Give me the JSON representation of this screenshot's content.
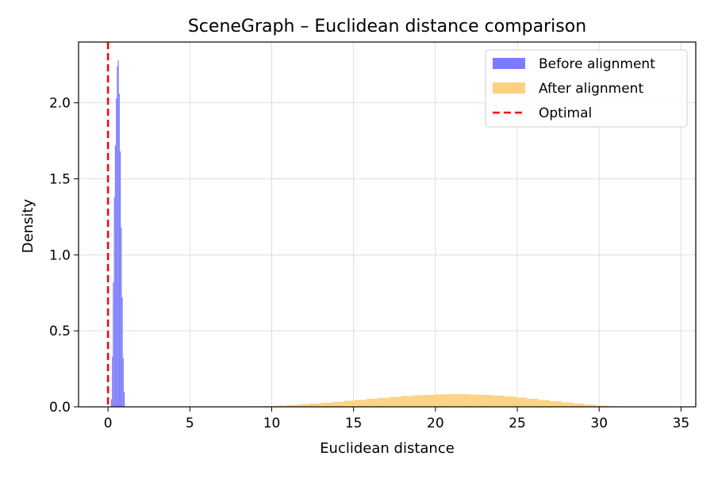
{
  "chart_data": {
    "type": "histogram",
    "title": "SceneGraph – Euclidean distance comparison",
    "xlabel": "Euclidean distance",
    "ylabel": "Density",
    "xlim": [
      -1.8,
      35.9
    ],
    "ylim": [
      0,
      2.4
    ],
    "xticks": [
      0,
      5,
      10,
      15,
      20,
      25,
      30,
      35
    ],
    "yticks": [
      0.0,
      0.5,
      1.0,
      1.5,
      2.0
    ],
    "xtick_labels": [
      "0",
      "5",
      "10",
      "15",
      "20",
      "25",
      "30",
      "35"
    ],
    "ytick_labels": [
      "0.0",
      "0.5",
      "1.0",
      "1.5",
      "2.0"
    ],
    "grid": true,
    "legend_position": "upper right",
    "series": [
      {
        "name": "Before alignment",
        "color": "#7b7bff",
        "bin_edges": [
          0.18,
          0.24,
          0.3,
          0.36,
          0.42,
          0.48,
          0.54,
          0.6,
          0.66,
          0.72,
          0.78,
          0.84,
          0.9,
          0.96,
          1.02
        ],
        "density": [
          0.05,
          0.33,
          0.82,
          1.38,
          1.72,
          2.03,
          2.24,
          2.28,
          2.06,
          1.68,
          1.18,
          0.72,
          0.32,
          0.1
        ]
      },
      {
        "name": "After alignment",
        "color": "#fdd17f",
        "bin_edges": [
          8.8,
          9.5,
          10.2,
          10.9,
          11.6,
          12.3,
          13.0,
          13.7,
          14.4,
          15.1,
          15.8,
          16.5,
          17.2,
          17.9,
          18.6,
          19.3,
          20.0,
          20.7,
          21.4,
          22.1,
          22.8,
          23.5,
          24.2,
          24.9,
          25.6,
          26.3,
          27.0,
          27.7,
          28.4,
          29.1,
          29.8,
          30.5,
          31.2,
          31.9
        ],
        "density": [
          0.003,
          0.005,
          0.008,
          0.012,
          0.016,
          0.021,
          0.027,
          0.033,
          0.04,
          0.046,
          0.053,
          0.059,
          0.065,
          0.071,
          0.076,
          0.079,
          0.082,
          0.083,
          0.083,
          0.081,
          0.078,
          0.074,
          0.068,
          0.061,
          0.053,
          0.045,
          0.037,
          0.029,
          0.021,
          0.014,
          0.008,
          0.004,
          0.002
        ]
      }
    ],
    "vline": {
      "name": "Optimal",
      "x": 0,
      "color": "#ff0000",
      "style": "dashed"
    }
  }
}
